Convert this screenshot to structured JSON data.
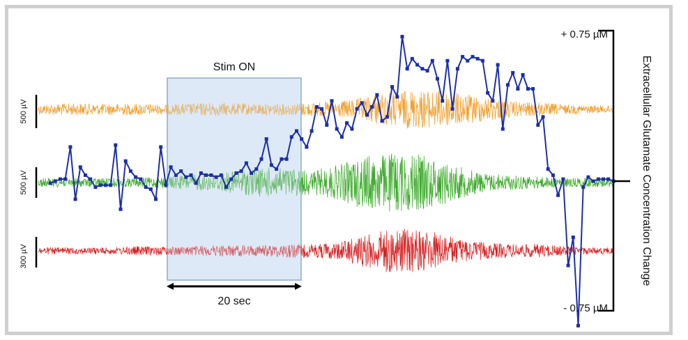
{
  "chart_data": {
    "type": "line",
    "title": "",
    "stimulus": {
      "label": "Stim ON",
      "duration_label": "20 sec",
      "start_index": 21,
      "end_index": 42
    },
    "right_axis": {
      "label": "Extracellular Glutamate Concentration Change",
      "top_label": "+ 0.75 µM",
      "bottom_label": "- 0.75 µM",
      "ylim": [
        -0.75,
        0.75
      ]
    },
    "scale_bars": [
      {
        "label": "500 µV",
        "trace": "orange"
      },
      {
        "label": "500 µV",
        "trace": "green"
      },
      {
        "label": "300 µV",
        "trace": "red"
      }
    ],
    "traces": [
      {
        "name": "orange",
        "color": "#f0a030",
        "envelope": [
          0.25,
          0.3,
          0.3,
          0.28,
          0.3,
          0.25,
          0.3,
          0.35,
          0.3,
          0.3,
          0.3,
          0.35,
          0.4,
          0.6,
          0.9,
          1.0,
          0.95,
          0.8,
          0.6,
          0.4,
          0.35,
          0.25,
          0.2,
          0.2
        ]
      },
      {
        "name": "green",
        "color": "#3aaa28",
        "envelope": [
          0.15,
          0.15,
          0.15,
          0.15,
          0.15,
          0.2,
          0.25,
          0.3,
          0.4,
          0.5,
          0.5,
          0.4,
          0.6,
          0.9,
          1.0,
          1.0,
          0.8,
          0.5,
          0.3,
          0.25,
          0.2,
          0.15,
          0.15,
          0.15
        ]
      },
      {
        "name": "red",
        "color": "#d62020",
        "envelope": [
          0.15,
          0.15,
          0.15,
          0.15,
          0.2,
          0.2,
          0.2,
          0.25,
          0.25,
          0.25,
          0.3,
          0.3,
          0.4,
          0.7,
          1.0,
          1.0,
          0.8,
          0.5,
          0.35,
          0.3,
          0.3,
          0.2,
          0.15,
          0.15
        ]
      }
    ],
    "series": [
      {
        "name": "Extracellular Glutamate Concentration Change",
        "color": "#1c2fa8",
        "values": [
          -0.01,
          0.0,
          0.01,
          0.01,
          0.17,
          -0.09,
          0.07,
          0.03,
          0.01,
          -0.03,
          -0.02,
          -0.02,
          -0.02,
          0.18,
          -0.14,
          0.1,
          0.05,
          0.02,
          0.01,
          -0.03,
          -0.04,
          -0.09,
          0.17,
          -0.02,
          0.07,
          0.03,
          0.05,
          0.02,
          0.03,
          -0.01,
          0.04,
          0.03,
          0.03,
          0.02,
          0.03,
          -0.03,
          0.01,
          0.04,
          0.05,
          0.09,
          0.04,
          0.06,
          0.11,
          0.21,
          0.08,
          0.06,
          0.11,
          0.11,
          0.22,
          0.25,
          0.21,
          0.17,
          0.25,
          0.37,
          0.36,
          0.28,
          0.4,
          0.26,
          0.22,
          0.29,
          0.26,
          0.36,
          0.39,
          0.33,
          0.37,
          0.43,
          0.3,
          0.32,
          0.47,
          0.42,
          0.72,
          0.56,
          0.61,
          0.58,
          0.56,
          0.55,
          0.6,
          0.51,
          0.4,
          0.6,
          0.36,
          0.56,
          0.62,
          0.6,
          0.62,
          0.61,
          0.6,
          0.44,
          0.4,
          0.58,
          0.26,
          0.48,
          0.54,
          0.46,
          0.53,
          0.46,
          0.46,
          0.28,
          0.32,
          0.06,
          0.03,
          -0.07,
          0.01,
          -0.42,
          -0.28,
          -0.72,
          -0.03,
          0.02,
          0.0,
          0.01,
          0.01,
          0.01,
          0.0
        ],
        "ylim": [
          -0.75,
          0.75
        ]
      }
    ]
  }
}
